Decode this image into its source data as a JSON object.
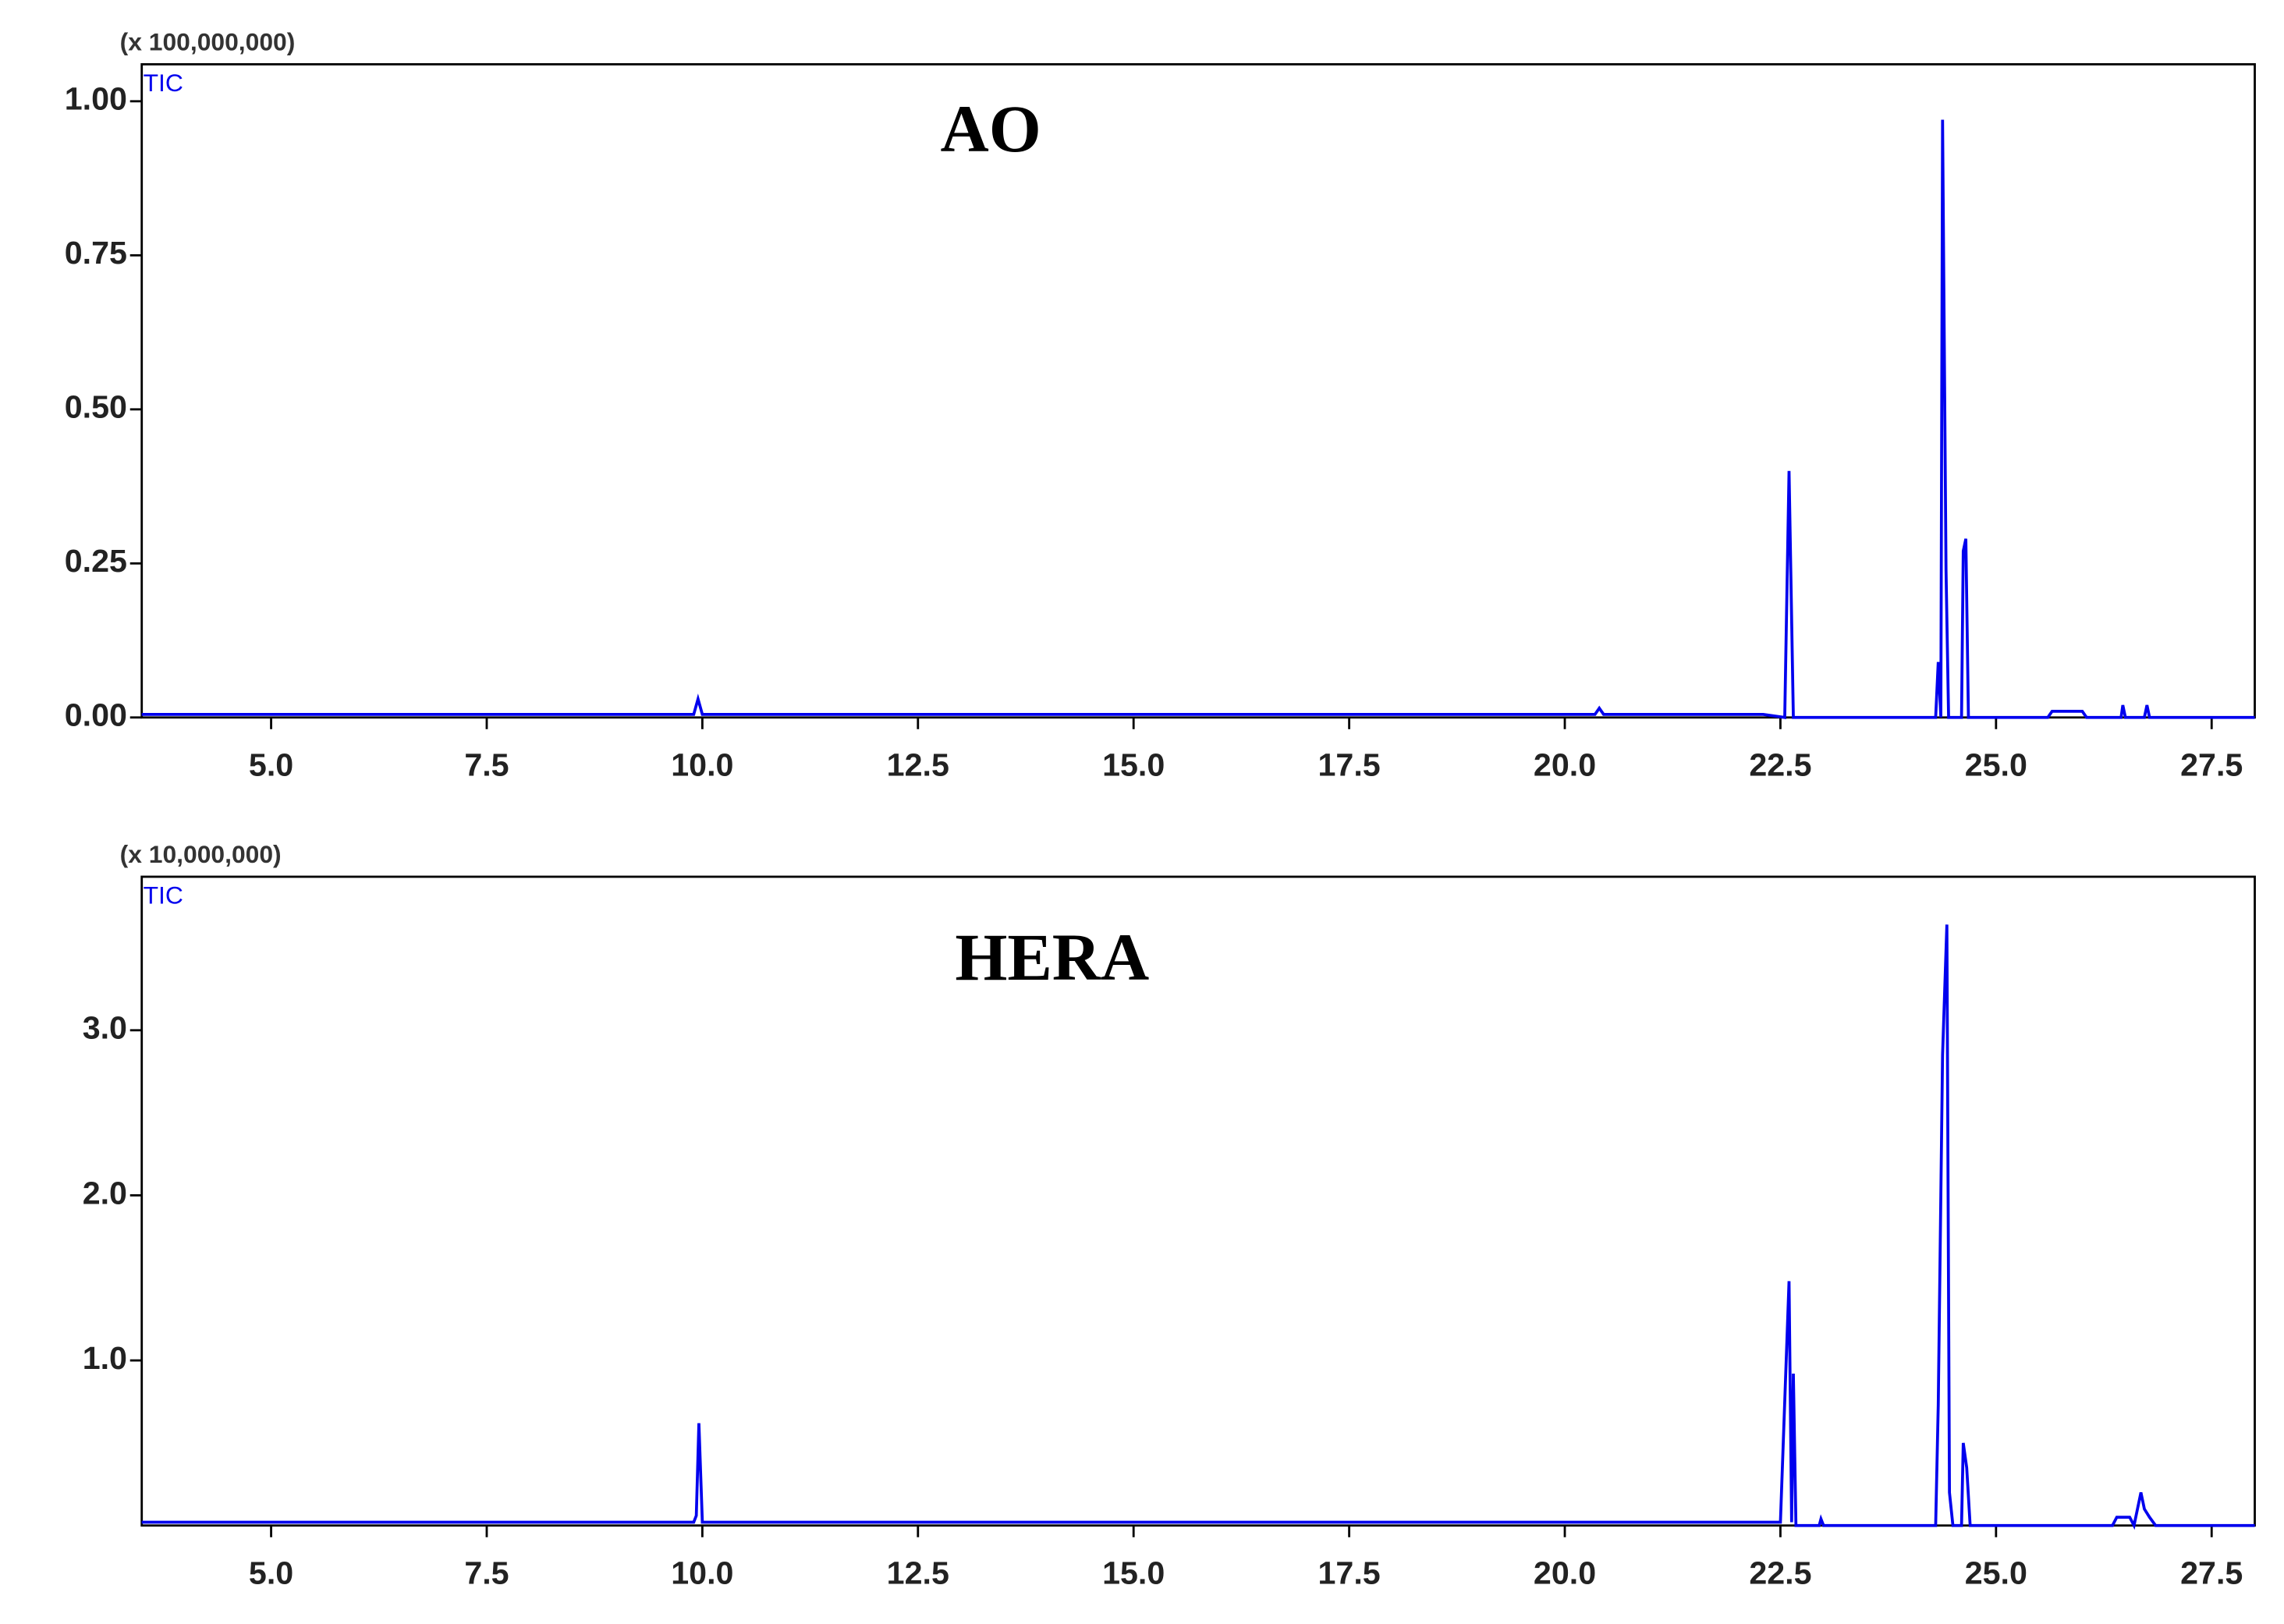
{
  "chart_data": [
    {
      "type": "line",
      "title": "AO",
      "y_multiplier": "(x 100,000,000)",
      "x": [
        3.5,
        9.9,
        9.95,
        10.0,
        20.35,
        20.4,
        20.45,
        22.3,
        22.55,
        22.6,
        22.65,
        24.3,
        24.33,
        24.36,
        24.38,
        24.42,
        24.45,
        24.6,
        24.62,
        24.65,
        24.68,
        25.6,
        25.65,
        26.0,
        26.05,
        26.45,
        26.47,
        26.5,
        26.72,
        26.75,
        26.78,
        28.0
      ],
      "series": [
        {
          "name": "TIC",
          "color": "#0000ee",
          "values": [
            0.005,
            0.005,
            0.03,
            0.005,
            0.005,
            0.015,
            0.005,
            0.005,
            0,
            0.4,
            0,
            0,
            0.09,
            0,
            0.97,
            0.24,
            0,
            0,
            0.27,
            0.29,
            0,
            0,
            0.01,
            0.01,
            0,
            0,
            0.02,
            0,
            0,
            0.02,
            0,
            0
          ]
        }
      ],
      "xlim": [
        3.5,
        28.0
      ],
      "xticks": [
        {
          "value": 5,
          "label": "5.0"
        },
        7.5,
        {
          "value": 10,
          "label": "10.0"
        },
        12.5,
        {
          "value": 15,
          "label": "15.0"
        },
        17.5,
        {
          "value": 20,
          "label": "20.0"
        },
        22.5,
        {
          "value": 25,
          "label": "25.0"
        },
        27.5
      ],
      "ylim": [
        0,
        1.06
      ],
      "yticks": [
        {
          "value": 0,
          "label": "0.00"
        },
        0.25,
        {
          "value": 0.5,
          "label": "0.50"
        },
        0.75,
        {
          "value": 1,
          "label": "1.00"
        }
      ]
    },
    {
      "type": "line",
      "title": "HERA",
      "y_multiplier": "(x 10,000,000)",
      "x": [
        3.5,
        9.9,
        9.93,
        9.96,
        10.0,
        22.5,
        22.6,
        22.63,
        22.65,
        22.68,
        22.95,
        22.97,
        23.0,
        24.3,
        24.33,
        24.38,
        24.43,
        24.46,
        24.5,
        24.6,
        24.62,
        24.66,
        24.7,
        26.35,
        26.4,
        26.55,
        26.6,
        26.68,
        26.72,
        26.78,
        26.85,
        28.0
      ],
      "series": [
        {
          "name": "TIC",
          "color": "#0000ee",
          "values": [
            0.02,
            0.02,
            0.06,
            0.62,
            0.02,
            0.02,
            1.48,
            0.02,
            0.92,
            0,
            0,
            0.04,
            0,
            0,
            0.73,
            2.85,
            3.64,
            0.2,
            0,
            0,
            0.5,
            0.35,
            0,
            0,
            0.05,
            0.05,
            0,
            0.2,
            0.1,
            0.05,
            0,
            0
          ]
        }
      ],
      "xlim": [
        3.5,
        28.0
      ],
      "xticks": [
        {
          "value": 5,
          "label": "5.0"
        },
        7.5,
        {
          "value": 10,
          "label": "10.0"
        },
        12.5,
        {
          "value": 15,
          "label": "15.0"
        },
        17.5,
        {
          "value": 20,
          "label": "20.0"
        },
        22.5,
        {
          "value": 25,
          "label": "25.0"
        },
        27.5
      ],
      "ylim": [
        0,
        3.93
      ],
      "yticks": [
        {
          "value": 1,
          "label": "1.0"
        },
        {
          "value": 2,
          "label": "2.0"
        },
        {
          "value": 3,
          "label": "3.0"
        }
      ]
    }
  ]
}
